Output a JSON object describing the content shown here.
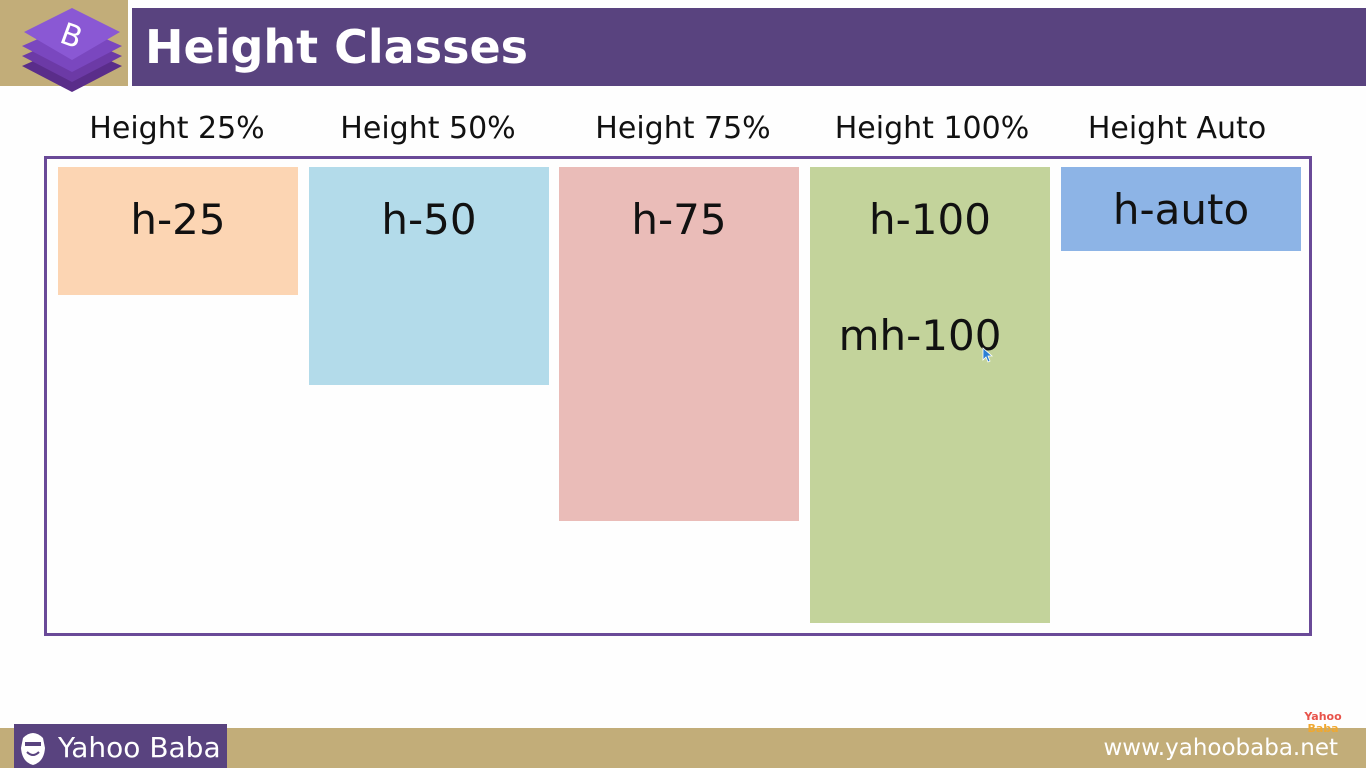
{
  "header": {
    "title": "Height Classes",
    "logo_letter": "B"
  },
  "columns": [
    {
      "label": "Height 25%",
      "classes": [
        "h-25"
      ],
      "color": "#fcd5b3",
      "height_percent": 25
    },
    {
      "label": "Height 50%",
      "classes": [
        "h-50"
      ],
      "color": "#b3dbea",
      "height_percent": 50
    },
    {
      "label": "Height 75%",
      "classes": [
        "h-75"
      ],
      "color": "#eabcb8",
      "height_percent": 75
    },
    {
      "label": "Height 100%",
      "classes": [
        "h-100",
        "mh-100"
      ],
      "color": "#c3d39b",
      "height_percent": 100
    },
    {
      "label": "Height Auto",
      "classes": [
        "h-auto"
      ],
      "color": "#8db4e6",
      "height_percent": null
    }
  ],
  "footer": {
    "brand": "Yahoo Baba",
    "url": "www.yahoobaba.net",
    "watermark": [
      "Yahoo",
      "Baba"
    ]
  },
  "colors": {
    "header_purple": "#59437f",
    "header_gold": "#c2ad79",
    "container_border": "#6a4a98"
  },
  "icons": {
    "logo": "bootstrap-stack-logo",
    "brand": "yahoo-baba-face-icon",
    "cursor": "mouse-pointer-icon"
  }
}
